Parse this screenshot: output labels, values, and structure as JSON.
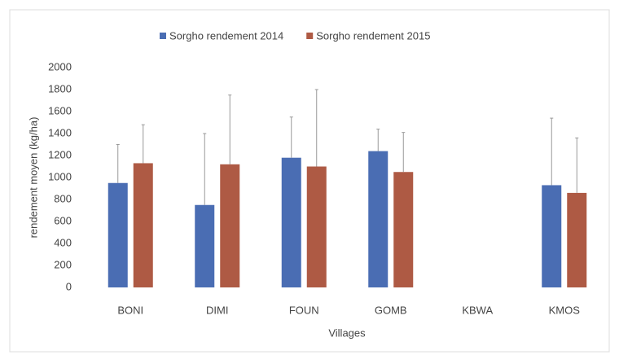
{
  "chart_data": {
    "type": "bar",
    "x_label": "Villages",
    "y_label": "rendement moyen (kg/ha)",
    "categories": [
      "BONI",
      "DIMI",
      "FOUN",
      "GOMB",
      "KBWA",
      "KMOS"
    ],
    "series": [
      {
        "name": "Sorgho rendement 2014",
        "color": "#4a6db3",
        "values": [
          950,
          750,
          1180,
          1240,
          null,
          930
        ],
        "errors": [
          350,
          650,
          370,
          200,
          null,
          610
        ]
      },
      {
        "name": "Sorgho rendement 2015",
        "color": "#ae5a44",
        "values": [
          1130,
          1120,
          1100,
          1050,
          null,
          860
        ],
        "errors": [
          350,
          630,
          700,
          360,
          null,
          500
        ]
      }
    ],
    "ylim": [
      0,
      2000
    ],
    "yticks": [
      0,
      200,
      400,
      600,
      800,
      1000,
      1200,
      1400,
      1600,
      1800,
      2000
    ],
    "grid": false,
    "legend": "top"
  }
}
